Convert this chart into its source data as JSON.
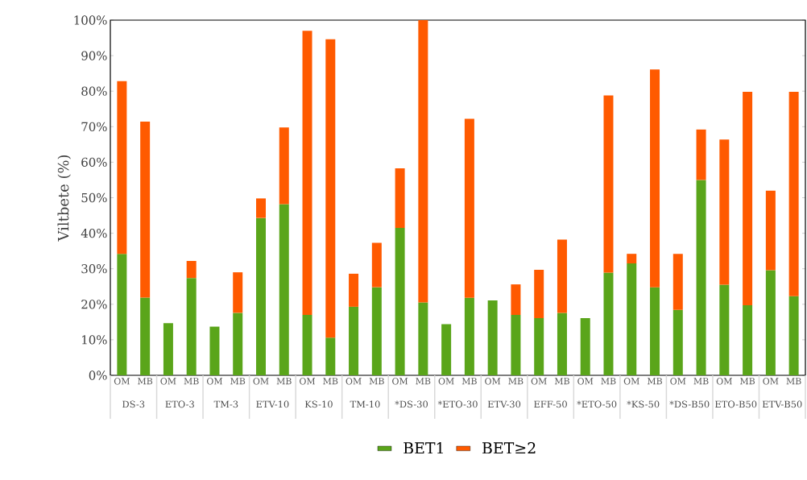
{
  "chart_data": {
    "type": "bar",
    "stacked": true,
    "ylabel": "Viltbete (%)",
    "categories": [
      "OM",
      "MB",
      "OM",
      "MB",
      "OM",
      "MB",
      "OM",
      "MB",
      "OM",
      "MB",
      "OM",
      "MB",
      "OM",
      "MB",
      "OM",
      "MB",
      "OM",
      "MB",
      "OM",
      "MB",
      "OM",
      "MB",
      "OM",
      "MB",
      "OM",
      "MB",
      "OM",
      "MB",
      "OM",
      "MB"
    ],
    "annotations": [
      "DS-3",
      "ETO-3",
      "TM-3",
      "ETV-10",
      "KS-10",
      "TM-10",
      "*DS-30",
      "*ETO-30",
      "ETV-30",
      "EFF-50",
      "*ETO-50",
      "*KS-50",
      "*DS-B50",
      "ETO-B50",
      "ETV-B50"
    ],
    "series": [
      {
        "name": "BET1",
        "color": "#5aa51a",
        "values": [
          34.2,
          21.9,
          14.7,
          27.4,
          13.7,
          17.6,
          44.3,
          48.2,
          17.0,
          10.6,
          19.3,
          24.8,
          41.5,
          20.5,
          14.4,
          21.8,
          21.1,
          17.0,
          16.1,
          17.6,
          16.1,
          28.9,
          31.5,
          24.8,
          18.4,
          55.0,
          25.5,
          19.7,
          29.6,
          22.3
        ]
      },
      {
        "name": "BET≥2",
        "color": "#ff5a00",
        "values": [
          48.6,
          49.5,
          null,
          4.8,
          null,
          11.4,
          5.5,
          21.6,
          80.0,
          84.0,
          9.3,
          12.5,
          16.8,
          79.5,
          null,
          50.4,
          null,
          8.6,
          13.6,
          20.6,
          null,
          49.9,
          2.7,
          61.3,
          15.8,
          14.2,
          40.9,
          60.1,
          22.4,
          57.5
        ]
      }
    ],
    "ylim": [
      0,
      100
    ],
    "yticks": [
      {
        "value": 0,
        "label": "0%"
      },
      {
        "value": 10,
        "label": "10%"
      },
      {
        "value": 20,
        "label": "20%"
      },
      {
        "value": 30,
        "label": "30%"
      },
      {
        "value": 40,
        "label": "40%"
      },
      {
        "value": 50,
        "label": "50%"
      },
      {
        "value": 60,
        "label": "60%"
      },
      {
        "value": 70,
        "label": "70%"
      },
      {
        "value": 80,
        "label": "80%"
      },
      {
        "value": 90,
        "label": "90%"
      },
      {
        "value": 100,
        "label": "100%"
      }
    ],
    "legend": "bottom"
  }
}
